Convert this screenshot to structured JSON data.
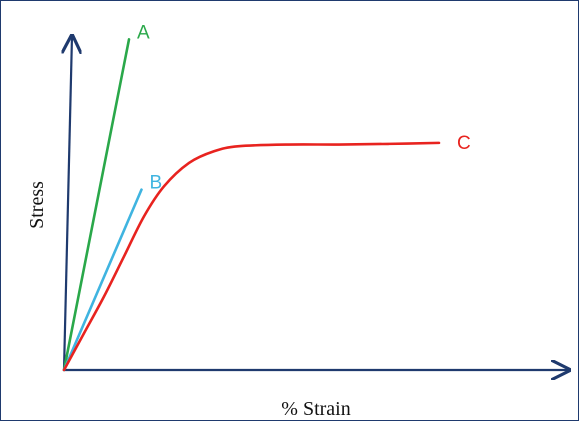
{
  "chart_data": {
    "type": "line",
    "title": "",
    "xlabel": "% Strain",
    "ylabel": "Stress",
    "xlim": [
      0,
      100
    ],
    "ylim": [
      0,
      100
    ],
    "grid": false,
    "legend": "none",
    "series": [
      {
        "name": "A",
        "color": "#2aa84a",
        "points": [
          [
            0,
            0
          ],
          [
            13,
            99
          ]
        ]
      },
      {
        "name": "B",
        "color": "#3fb4e0",
        "points": [
          [
            0,
            0
          ],
          [
            15.5,
            54
          ]
        ]
      },
      {
        "name": "C",
        "color": "#e8231f",
        "points": [
          [
            0,
            0
          ],
          [
            4,
            11
          ],
          [
            8,
            22
          ],
          [
            12,
            34
          ],
          [
            16,
            46
          ],
          [
            20,
            55
          ],
          [
            25,
            62
          ],
          [
            30,
            65.5
          ],
          [
            35,
            67
          ],
          [
            45,
            67.5
          ],
          [
            55,
            67.5
          ],
          [
            65,
            67.7
          ],
          [
            75,
            68
          ]
        ]
      }
    ]
  }
}
